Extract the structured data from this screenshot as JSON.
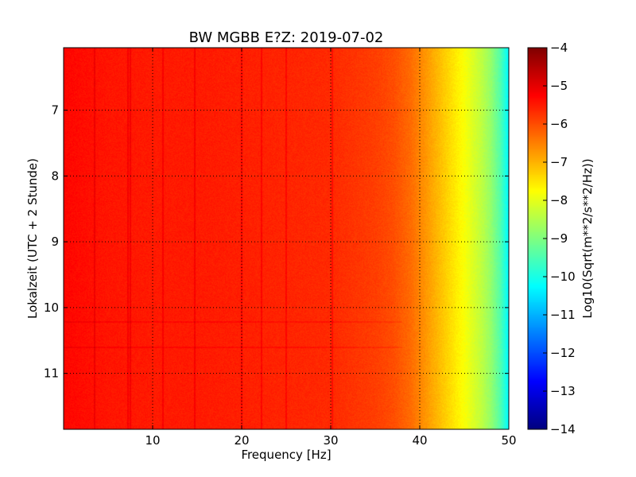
{
  "chart_data": {
    "type": "heatmap",
    "title": "BW MGBB E?Z: 2019-07-02",
    "xlabel": "Frequency [Hz]",
    "ylabel": "Lokalzeit (UTC + 2 Stunde)",
    "colorbar_label": "Log10(Sqrt(m**2/s**2/Hz))",
    "xlim": [
      0,
      50
    ],
    "ylim": [
      6.05,
      11.85
    ],
    "y_inverted": true,
    "x_ticks": [
      10,
      20,
      30,
      40,
      50
    ],
    "x_tick_labels": [
      "10",
      "20",
      "30",
      "40",
      "50"
    ],
    "y_ticks": [
      7,
      8,
      9,
      10,
      11
    ],
    "y_tick_labels": [
      "7",
      "8",
      "9",
      "10",
      "11"
    ],
    "clim": [
      -14,
      -4
    ],
    "colorbar_ticks": [
      -4,
      -5,
      -6,
      -7,
      -8,
      -9,
      -10,
      -11,
      -12,
      -13,
      -14
    ],
    "colorbar_tick_labels": [
      "−4",
      "−5",
      "−6",
      "−7",
      "−8",
      "−9",
      "−10",
      "−11",
      "−12",
      "−13",
      "−14"
    ],
    "colormap": "jet",
    "grid": true,
    "spectrum_profile": {
      "frequency_hz": [
        0,
        5,
        10,
        15,
        20,
        25,
        30,
        35,
        37,
        39,
        40,
        41,
        42,
        43,
        44,
        45,
        46,
        47,
        48,
        49,
        50
      ],
      "log10_amplitude": [
        -5.3,
        -5.45,
        -5.5,
        -5.5,
        -5.55,
        -5.6,
        -5.65,
        -5.85,
        -6.0,
        -6.3,
        -6.55,
        -6.8,
        -7.05,
        -7.3,
        -7.55,
        -7.8,
        -8.1,
        -8.4,
        -8.8,
        -9.4,
        -10.3
      ]
    },
    "spectral_lines_hz": [
      3.5,
      7.2,
      7.5,
      11.2,
      14.7,
      20.0,
      22.2,
      25.0,
      30.2
    ],
    "horizontal_events_hour": [
      10.22,
      10.6
    ]
  }
}
